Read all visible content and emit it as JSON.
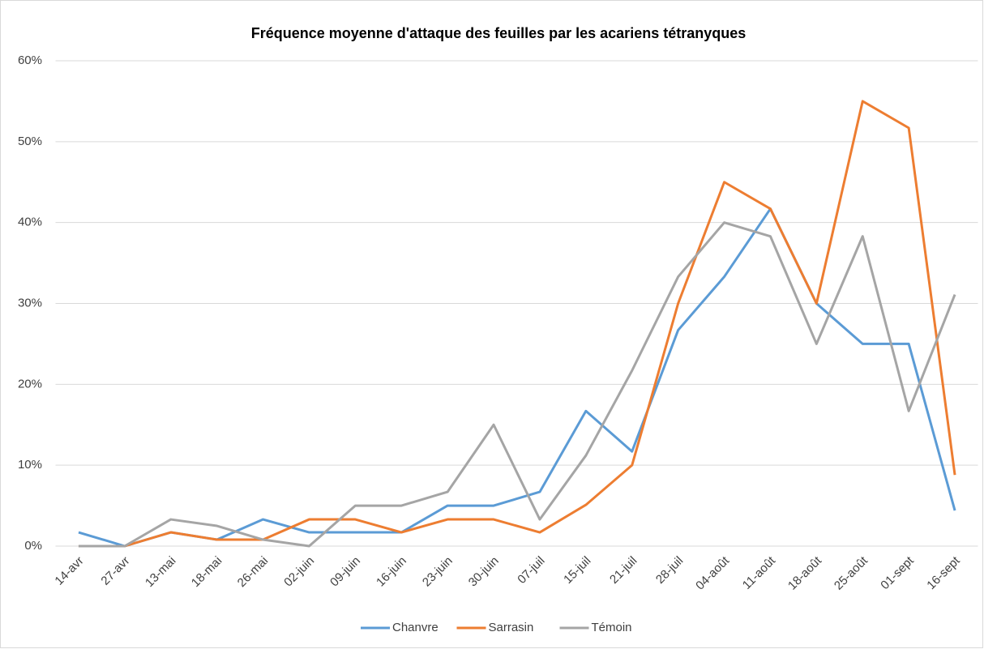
{
  "chart_data": {
    "type": "line",
    "title": "Fréquence moyenne d'attaque des feuilles par les acariens tétranyques",
    "categories": [
      "14-avr",
      "27-avr",
      "13-mai",
      "18-mai",
      "26-mai",
      "02-juin",
      "09-juin",
      "16-juin",
      "23-juin",
      "30-juin",
      "07-juil",
      "15-juil",
      "21-juil",
      "28-juil",
      "04-août",
      "11-août",
      "18-août",
      "25-août",
      "01-sept",
      "16-sept"
    ],
    "series": [
      {
        "name": "Chanvre",
        "color": "#5b9bd5",
        "values": [
          1.7,
          0,
          1.7,
          0.8,
          3.3,
          1.7,
          1.7,
          1.7,
          5,
          5,
          6.7,
          16.7,
          11.7,
          26.7,
          33.3,
          41.7,
          30,
          25,
          25,
          4.4
        ]
      },
      {
        "name": "Sarrasin",
        "color": "#ed7d31",
        "values": [
          0,
          0,
          1.7,
          0.8,
          0.8,
          3.3,
          3.3,
          1.7,
          3.3,
          3.3,
          1.7,
          5.1,
          10,
          30,
          45,
          41.7,
          30,
          55,
          51.7,
          8.8
        ]
      },
      {
        "name": "Témoin",
        "color": "#a5a5a5",
        "values": [
          0,
          0,
          3.3,
          2.5,
          0.8,
          0,
          5,
          5,
          6.7,
          15,
          3.3,
          11.2,
          21.7,
          33.3,
          40,
          38.3,
          25,
          38.3,
          16.7,
          31.1
        ]
      }
    ],
    "ylim": [
      0,
      60
    ],
    "yticks": [
      {
        "value": 0,
        "label": "0%"
      },
      {
        "value": 10,
        "label": "10%"
      },
      {
        "value": 20,
        "label": "20%"
      },
      {
        "value": 30,
        "label": "30%"
      },
      {
        "value": 40,
        "label": "40%"
      },
      {
        "value": 50,
        "label": "50%"
      },
      {
        "value": 60,
        "label": "60%"
      }
    ],
    "grid": true,
    "legend": "bottom"
  }
}
